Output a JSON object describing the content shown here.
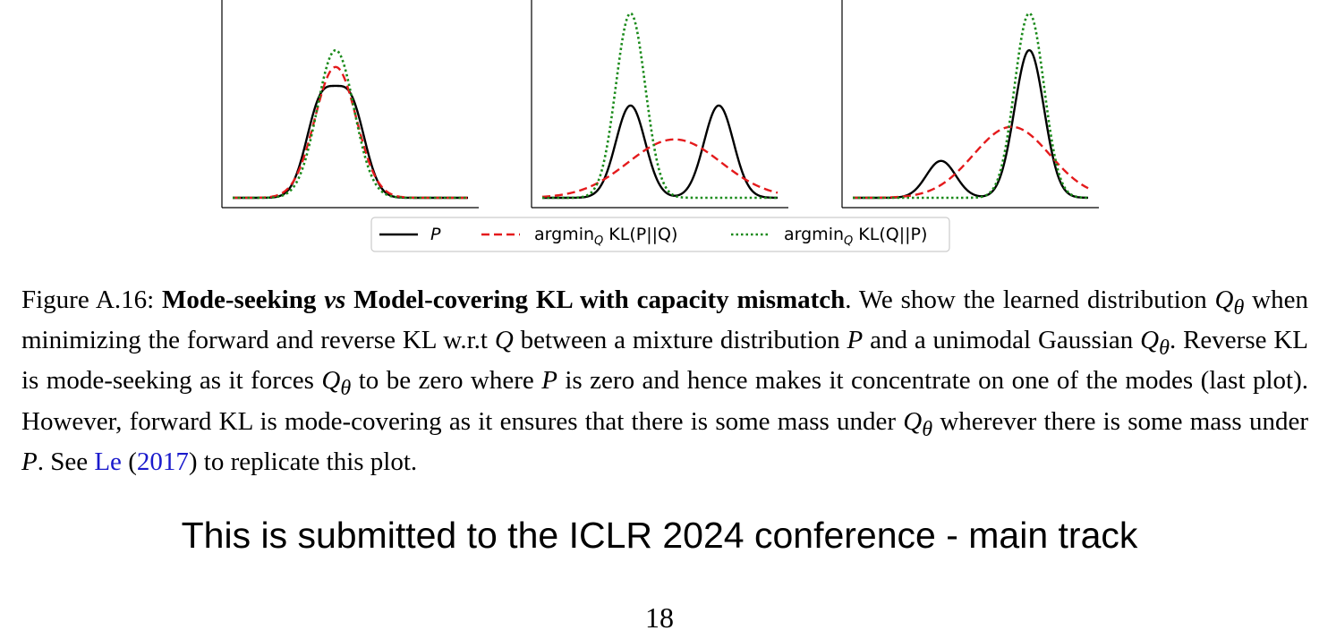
{
  "figure": {
    "legend": [
      {
        "id": "p",
        "label": "P",
        "style": "solid",
        "color": "#000000"
      },
      {
        "id": "fwd",
        "label_main": "argmin",
        "label_sub": "Q",
        "label_rest": " KL(P||Q)",
        "style": "dashed",
        "color": "#e41a1c"
      },
      {
        "id": "rev",
        "label_main": "argmin",
        "label_sub": "Q",
        "label_rest": " KL(Q||P)",
        "style": "dotted",
        "color": "#1a8a1a"
      }
    ]
  },
  "chart_data": [
    {
      "type": "line",
      "x_domain": [
        -6,
        10
      ],
      "series": [
        {
          "name": "P",
          "kind": "mixture",
          "components": [
            {
              "w": 0.5,
              "mu": 0,
              "sigma": 1
            },
            {
              "w": 0.5,
              "mu": 2,
              "sigma": 1
            }
          ]
        },
        {
          "name": "argmin_Q KL(P||Q)",
          "kind": "gaussian",
          "mu": 1.0,
          "sigma": 1.41
        },
        {
          "name": "argmin_Q KL(Q||P)",
          "kind": "gaussian",
          "mu": 1.0,
          "sigma": 1.25
        }
      ],
      "ylim": [
        0,
        0.42
      ]
    },
    {
      "type": "line",
      "x_domain": [
        -6,
        10
      ],
      "series": [
        {
          "name": "P",
          "kind": "mixture",
          "components": [
            {
              "w": 0.5,
              "mu": 0,
              "sigma": 1
            },
            {
              "w": 0.5,
              "mu": 6,
              "sigma": 1
            }
          ]
        },
        {
          "name": "argmin_Q KL(P||Q)",
          "kind": "gaussian",
          "mu": 3.0,
          "sigma": 3.16
        },
        {
          "name": "argmin_Q KL(Q||P)",
          "kind": "gaussian",
          "mu": 0.0,
          "sigma": 1.0
        }
      ],
      "ylim": [
        0,
        0.42
      ]
    },
    {
      "type": "line",
      "x_domain": [
        -6,
        10
      ],
      "series": [
        {
          "name": "P",
          "kind": "mixture",
          "components": [
            {
              "w": 0.2,
              "mu": 0,
              "sigma": 1
            },
            {
              "w": 0.8,
              "mu": 6,
              "sigma": 1
            }
          ]
        },
        {
          "name": "argmin_Q KL(P||Q)",
          "kind": "gaussian",
          "mu": 4.8,
          "sigma": 2.6
        },
        {
          "name": "argmin_Q KL(Q||P)",
          "kind": "gaussian",
          "mu": 6.0,
          "sigma": 1.0
        }
      ],
      "ylim": [
        0,
        0.42
      ]
    }
  ],
  "caption": {
    "prefix": "Figure A.16: ",
    "bold1": "Mode-seeking ",
    "vs": "vs",
    "bold2": " Model-covering KL with capacity mismatch",
    "text1": ". We show the learned distribution ",
    "text2": " when minimizing the forward and reverse KL w.r.t ",
    "text3": " between a mixture distribution ",
    "text4": " and a unimodal Gaussian ",
    "text5": ". Reverse KL is mode-seeking as it forces ",
    "text6": " to be zero where ",
    "text7": " is zero and hence makes it concentrate on one of the modes (last plot). However, forward KL is mode-covering as it ensures that there is some mass under ",
    "text8": " wherever there is some mass under ",
    "text9": ". See ",
    "cite_author": "Le",
    "cite_year": "2017",
    "text10": " to replicate this plot.",
    "sym_Q": "Q",
    "sym_theta": "θ",
    "sym_P": "P"
  },
  "banner": "This is submitted to the ICLR 2024 conference - main track",
  "page_number": "18"
}
